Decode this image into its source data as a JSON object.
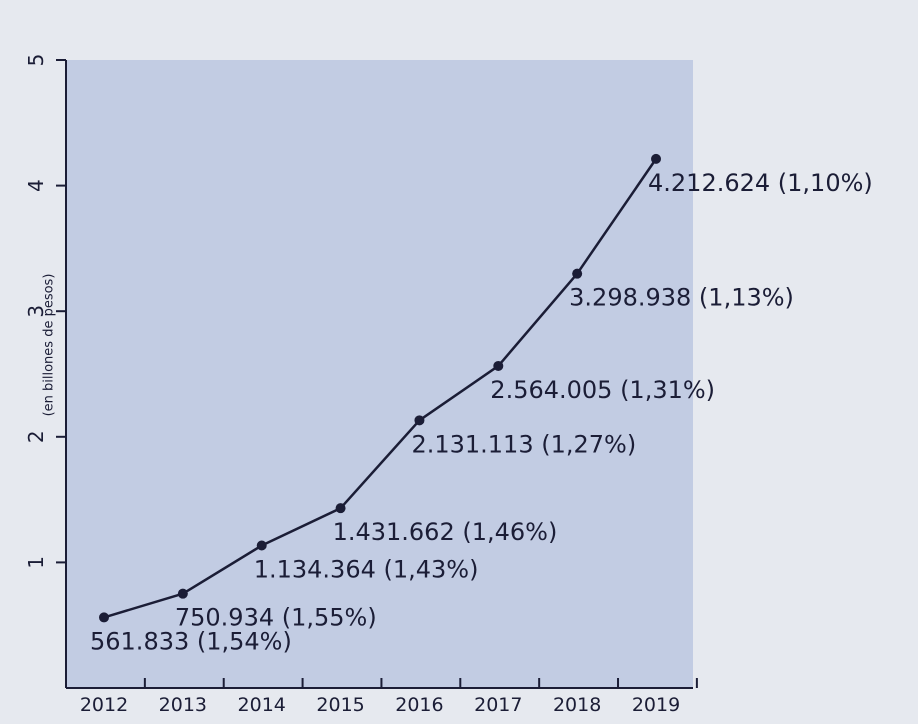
{
  "chart_data": {
    "type": "line",
    "title": "",
    "xlabel": "",
    "ylabel": "(en billones de pesos)",
    "categories": [
      "2012",
      "2013",
      "2014",
      "2015",
      "2016",
      "2017",
      "2018",
      "2019"
    ],
    "values": [
      0.561833,
      0.750934,
      1.134364,
      1.431662,
      2.131113,
      2.564005,
      3.298938,
      4.212624
    ],
    "data_labels": [
      "561.833 (1,54%)",
      "750.934 (1,55%)",
      "1.134.364 (1,43%)",
      "1.431.662 (1,46%)",
      "2.131.113 (1,27%)",
      "2.564.005 (1,31%)",
      "3.298.938 (1,13%)",
      "4.212.624 (1,10%)"
    ],
    "ylim": [
      0,
      5
    ],
    "yticks": [
      "1",
      "2",
      "3",
      "4",
      "5"
    ],
    "grid": false,
    "colors": {
      "background": "#e6e9ef",
      "plot_area": "#c2cce3",
      "line": "#1b1d36"
    }
  }
}
